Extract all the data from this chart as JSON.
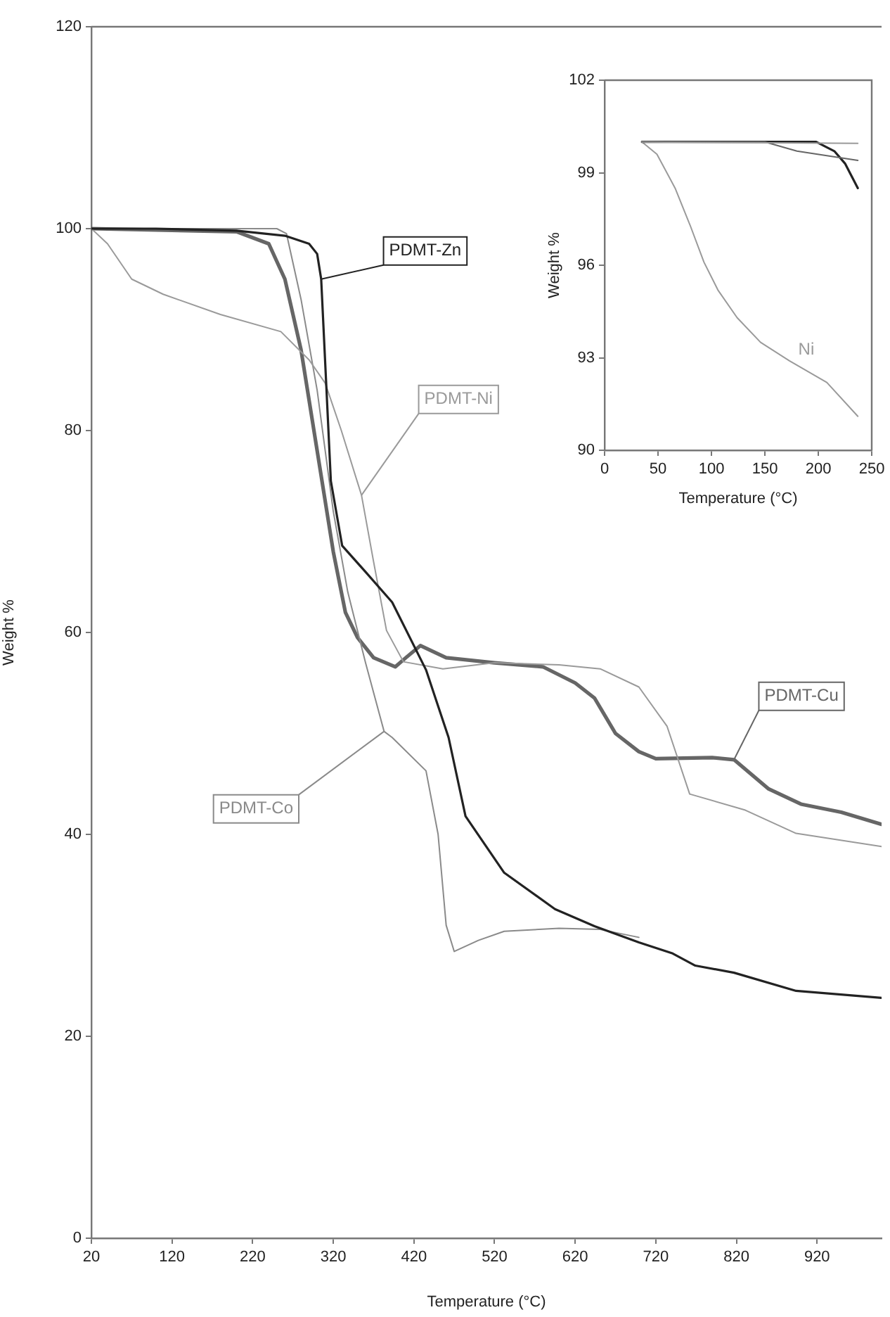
{
  "chart_data": [
    {
      "type": "line",
      "xlabel": "Temperature (°C)",
      "ylabel": "Weight %",
      "xlim": [
        20,
        1000
      ],
      "xticks": [
        20,
        120,
        220,
        320,
        420,
        520,
        620,
        720,
        820,
        920
      ],
      "ylim": [
        0,
        120
      ],
      "yticks": [
        0,
        20,
        40,
        60,
        80,
        100,
        120
      ],
      "grid": false,
      "legend": false,
      "series": [
        {
          "name": "PDMT-Zn",
          "color": "#222222",
          "x": [
            20,
            100,
            200,
            260,
            290,
            300,
            305,
            317,
            331,
            360,
            393,
            435,
            463,
            484,
            532,
            595,
            644,
            699,
            741,
            769,
            817,
            894,
            1000
          ],
          "values": [
            100,
            100,
            99.8,
            99.3,
            98.5,
            97.5,
            95,
            75,
            68.6,
            66,
            63,
            56.3,
            49.6,
            41.8,
            36.2,
            32.6,
            30.9,
            29.3,
            28.2,
            27,
            26.3,
            24.5,
            23.8
          ]
        },
        {
          "name": "PDMT-Ni",
          "color": "#9a9a9a",
          "x": [
            20,
            40,
            70,
            109,
            180,
            255,
            290,
            310,
            330,
            355,
            370,
            386,
            407,
            456,
            520,
            600,
            651,
            699,
            734,
            762,
            831,
            894,
            1000
          ],
          "values": [
            100,
            98.5,
            95,
            93.5,
            91.5,
            89.8,
            87,
            84.7,
            80,
            73.6,
            67,
            60.2,
            57.1,
            56.4,
            57,
            56.8,
            56.4,
            54.6,
            50.7,
            44,
            42.4,
            40.1,
            38.8
          ]
        },
        {
          "name": "PDMT-Co",
          "color": "#8a8a8a",
          "x": [
            20,
            100,
            200,
            250,
            262,
            280,
            300,
            320,
            338,
            360,
            383,
            393,
            435,
            450,
            460,
            470,
            500,
            532,
            600,
            650,
            699
          ],
          "values": [
            100,
            100,
            100,
            100,
            99.5,
            93,
            84,
            72,
            64,
            57,
            50.2,
            49.6,
            46.3,
            40,
            31,
            28.4,
            29.5,
            30.4,
            30.7,
            30.6,
            29.8
          ]
        },
        {
          "name": "PDMT-Cu",
          "color": "#666666",
          "x": [
            20,
            200,
            240,
            260,
            280,
            300,
            320,
            335,
            350,
            370,
            397,
            410,
            428,
            460,
            520,
            580,
            620,
            644,
            670,
            699,
            720,
            790,
            817,
            860,
            900,
            950,
            1000
          ],
          "values": [
            100,
            99.7,
            98.5,
            95,
            88,
            78,
            68,
            62,
            59.5,
            57.5,
            56.6,
            57.5,
            58.7,
            57.5,
            57,
            56.6,
            55,
            53.5,
            50,
            48.2,
            47.5,
            47.6,
            47.4,
            44.5,
            43,
            42.2,
            41
          ]
        }
      ]
    },
    {
      "type": "line",
      "xlabel": "Temperature (°C)",
      "ylabel": "Weight %",
      "xlim": [
        0,
        250
      ],
      "xticks": [
        0,
        50,
        100,
        150,
        200,
        250
      ],
      "ylim": [
        90,
        102
      ],
      "yticks": [
        90,
        93,
        96,
        99,
        102
      ],
      "grid": false,
      "legend": false,
      "series": [
        {
          "color": "#9a9a9a",
          "x": [
            35,
            237
          ],
          "values": [
            100,
            99.95
          ]
        },
        {
          "color": "#666666",
          "x": [
            35,
            150,
            180,
            237
          ],
          "values": [
            100,
            100,
            99.7,
            99.4
          ]
        },
        {
          "color": "#222222",
          "x": [
            35,
            198,
            215,
            225,
            237
          ],
          "values": [
            100,
            100,
            99.7,
            99.3,
            98.5
          ]
        },
        {
          "name": "Ni",
          "color": "#9a9a9a",
          "x": [
            35,
            49,
            66,
            80,
            93,
            106,
            124,
            146,
            173,
            208,
            237
          ],
          "values": [
            100,
            99.6,
            98.5,
            97.3,
            96.1,
            95.2,
            94.3,
            93.5,
            92.9,
            92.2,
            91.1
          ]
        }
      ]
    }
  ]
}
